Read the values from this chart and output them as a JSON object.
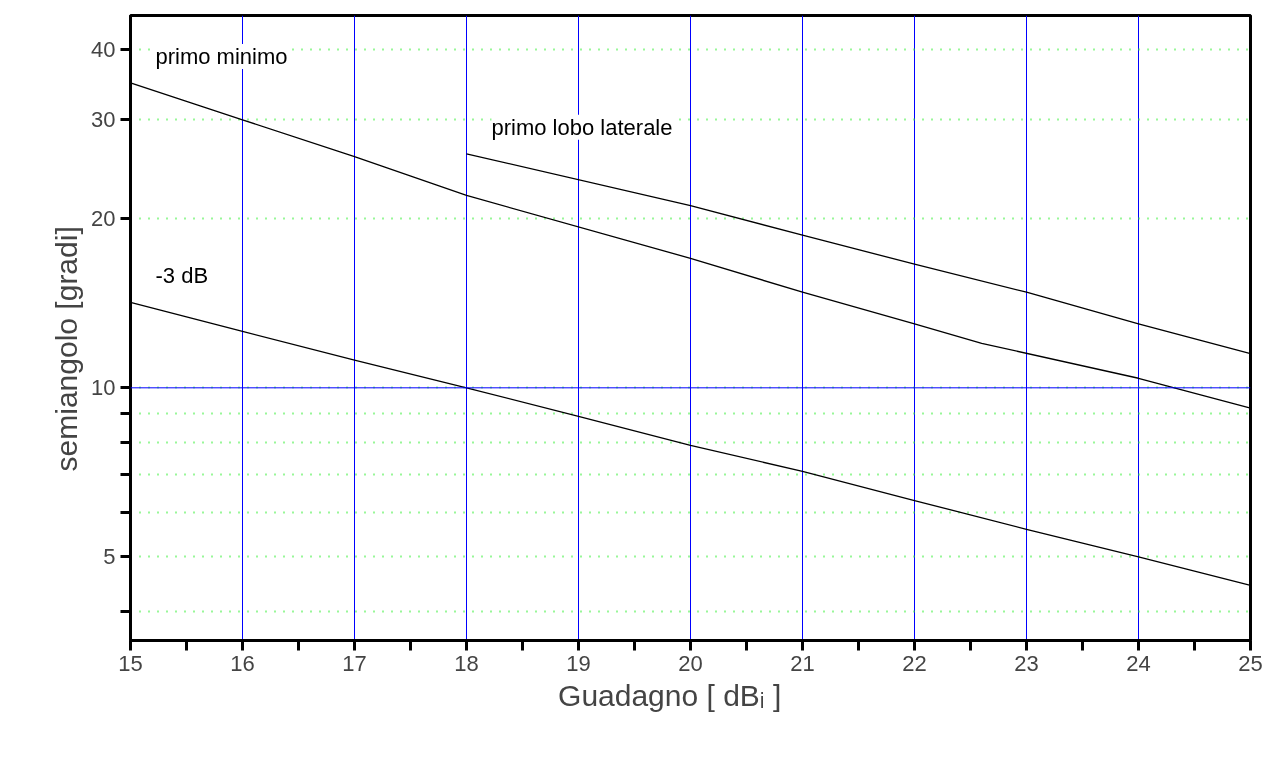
{
  "chart_data": {
    "type": "line",
    "xlabel": "Guadagno      [ dBᵢ ]",
    "ylabel": "semiangolo      [gradi]",
    "log": "y",
    "grid": true,
    "legend": false,
    "marker": "none",
    "line_style": "solid",
    "xlim": [
      15,
      25
    ],
    "ylim": [
      3.55,
      46
    ],
    "xticks": [
      15,
      {
        "value": 15.5,
        "label": null
      },
      16,
      {
        "value": 16.5,
        "label": null
      },
      17,
      {
        "value": 17.5,
        "label": null
      },
      18,
      {
        "value": 18.5,
        "label": null
      },
      19,
      {
        "value": 19.5,
        "label": null
      },
      20,
      {
        "value": 20.5,
        "label": null
      },
      21,
      {
        "value": 21.5,
        "label": null
      },
      22,
      {
        "value": 22.5,
        "label": null
      },
      23,
      {
        "value": 23.5,
        "label": null
      },
      24,
      {
        "value": 24.5,
        "label": null
      },
      25
    ],
    "yticks": [
      {
        "value": 4,
        "label": null
      },
      5,
      {
        "value": 6,
        "label": null
      },
      {
        "value": 7,
        "label": null
      },
      {
        "value": 8,
        "label": null
      },
      {
        "value": 9,
        "label": null
      },
      10,
      20,
      30,
      40
    ],
    "ref_lines": [
      {
        "axis": "y",
        "value": 10,
        "color": "#0000ff"
      }
    ],
    "series": [
      {
        "name": "primo minimo",
        "color": "#000000",
        "x": [
          15,
          16,
          17,
          18,
          20,
          21,
          22,
          22.6,
          24,
          25
        ],
        "values": [
          34.9,
          30,
          25.8,
          22.0,
          17.0,
          14.8,
          13.0,
          12.0,
          10.4,
          9.2
        ]
      },
      {
        "name": "primo lobo laterale",
        "color": "#000000",
        "x": [
          18,
          20,
          21,
          22,
          23,
          24,
          25
        ],
        "values": [
          26.1,
          21.1,
          18.7,
          16.6,
          14.8,
          13.0,
          11.5
        ]
      },
      {
        "name": "-3 dB",
        "color": "#000000",
        "x": [
          15,
          16,
          17,
          18,
          19,
          20,
          21,
          22,
          23,
          24,
          25
        ],
        "values": [
          14.2,
          12.6,
          11.2,
          10,
          8.9,
          7.9,
          7.1,
          6.3,
          5.6,
          5.0,
          4.45
        ]
      }
    ]
  }
}
